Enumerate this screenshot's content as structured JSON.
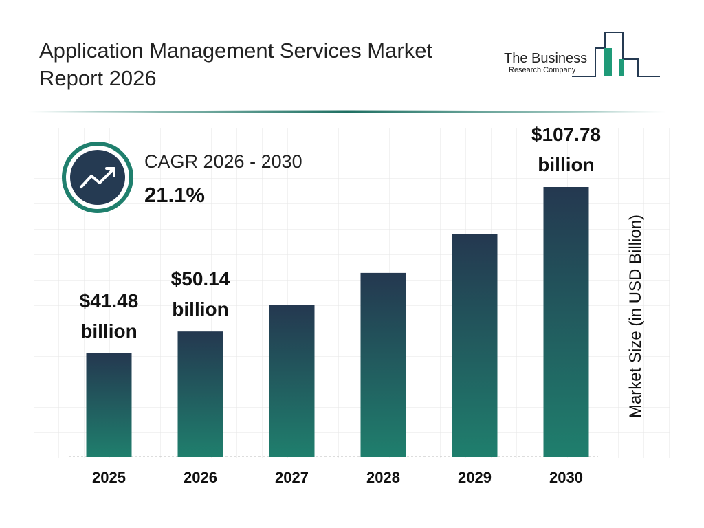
{
  "chart_data": {
    "type": "bar",
    "title": "Application Management Services Market Report 2026",
    "categories": [
      "2025",
      "2026",
      "2027",
      "2028",
      "2029",
      "2030"
    ],
    "values": [
      41.48,
      50.14,
      60.72,
      73.53,
      89.05,
      107.78
    ],
    "value_labels": [
      "$41.48 billion",
      "$50.14 billion",
      null,
      null,
      null,
      "$107.78 billion"
    ],
    "color_top": "#243850",
    "color_bottom": "#1f7f6d",
    "y_axis_label": "Market Size (in USD Billion)",
    "cagr_label": "CAGR 2026 - 2030",
    "cagr_value": "21.1%"
  },
  "logo": {
    "line1": "The Business",
    "line2": "Research Company"
  }
}
